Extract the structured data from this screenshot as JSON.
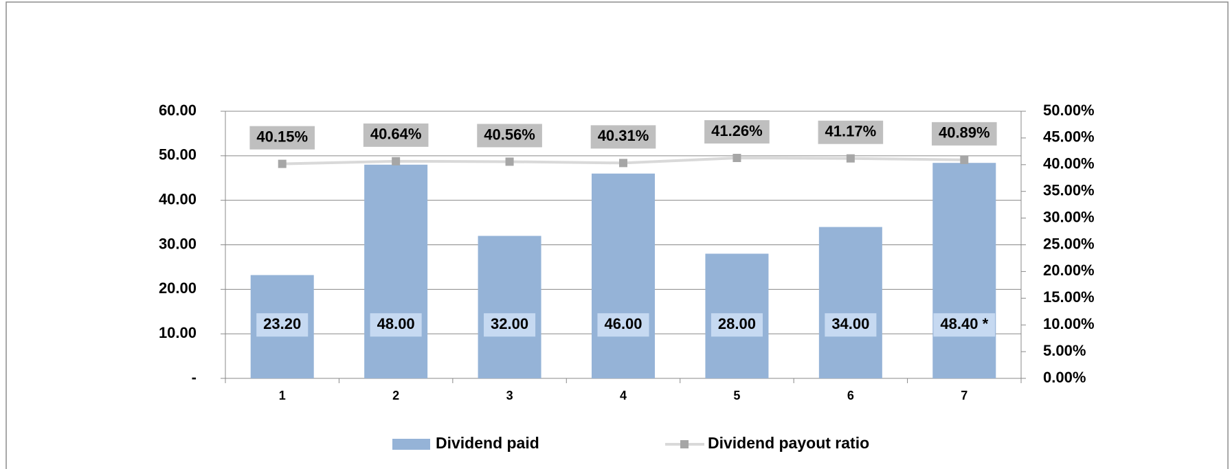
{
  "chart_data": {
    "type": "bar",
    "categories": [
      "1",
      "2",
      "3",
      "4",
      "5",
      "6",
      "7"
    ],
    "ylim": [
      0,
      60
    ],
    "yticks": [
      {
        "value": 0,
        "label": "-"
      },
      {
        "value": 10,
        "label": "10.00"
      },
      {
        "value": 20,
        "label": "20.00"
      },
      {
        "value": 30,
        "label": "30.00"
      },
      {
        "value": 40,
        "label": "40.00"
      },
      {
        "value": 50,
        "label": "50.00"
      },
      {
        "value": 60,
        "label": "60.00"
      }
    ],
    "y2lim": [
      0,
      50
    ],
    "y2ticks": [
      {
        "value": 0,
        "label": "0.00%"
      },
      {
        "value": 5,
        "label": "5.00%"
      },
      {
        "value": 10,
        "label": "10.00%"
      },
      {
        "value": 15,
        "label": "15.00%"
      },
      {
        "value": 20,
        "label": "20.00%"
      },
      {
        "value": 25,
        "label": "25.00%"
      },
      {
        "value": 30,
        "label": "30.00%"
      },
      {
        "value": 35,
        "label": "35.00%"
      },
      {
        "value": 40,
        "label": "40.00%"
      },
      {
        "value": 45,
        "label": "45.00%"
      },
      {
        "value": 50,
        "label": "50.00%"
      }
    ],
    "grid": true,
    "legend": "bottom",
    "series": [
      {
        "name": "Dividend paid",
        "type": "bar",
        "color": "#95b3d7",
        "label_color": "#c6d9f1",
        "values": [
          23.2,
          48,
          32,
          46,
          28,
          34,
          48.4
        ],
        "value_labels": [
          "23.20",
          "48.00",
          "32.00",
          "46.00",
          "28.00",
          "34.00",
          "48.40 *"
        ]
      },
      {
        "name": "Dividend payout ratio",
        "type": "line",
        "axis": "y2",
        "color": "#d9d9d9",
        "marker_color": "#a6a6a6",
        "label_color": "#bfbfbf",
        "values": [
          40.15,
          40.64,
          40.56,
          40.31,
          41.26,
          41.17,
          40.89
        ],
        "value_labels": [
          "40.15%",
          "40.64%",
          "40.56%",
          "40.31%",
          "41.26%",
          "41.17%",
          "40.89%"
        ]
      }
    ]
  }
}
